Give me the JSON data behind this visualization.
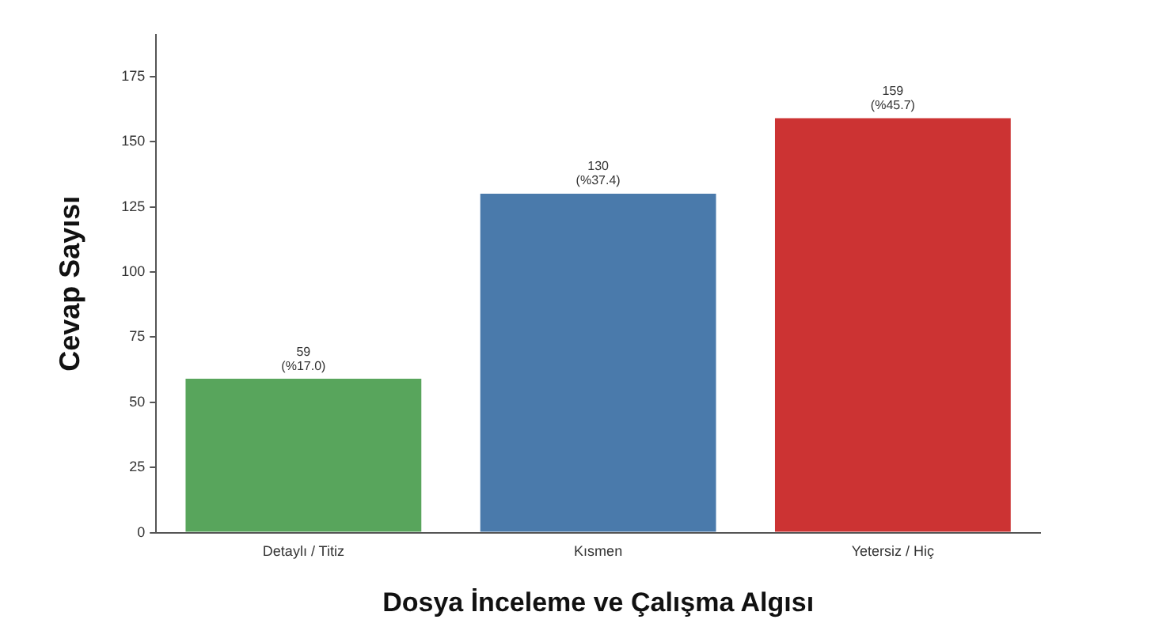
{
  "chart_data": {
    "type": "bar",
    "xlabel": "Dosya İnceleme ve Çalışma Algısı",
    "ylabel": "Cevap Sayısı",
    "categories": [
      "Detaylı / Titiz",
      "Kısmen",
      "Yetersiz / Hiç"
    ],
    "series": [
      {
        "values": [
          59,
          130,
          159
        ],
        "colors": [
          "#58a55c",
          "#4a7aab",
          "#cc3333"
        ]
      }
    ],
    "value_labels": [
      "59\n(%17.0)",
      "130\n(%37.4)",
      "159\n(%45.7)"
    ],
    "ylim": [
      0,
      191
    ],
    "yticks": [
      0,
      25,
      50,
      75,
      100,
      125,
      150,
      175
    ],
    "grid": false,
    "legend": false
  }
}
